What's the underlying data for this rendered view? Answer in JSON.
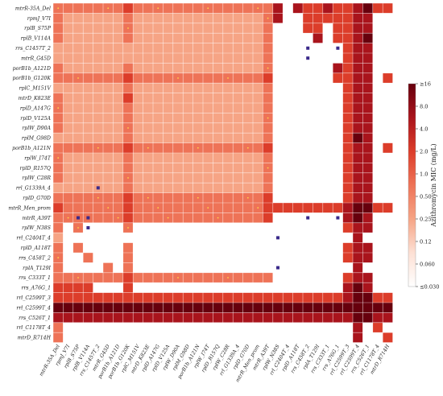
{
  "chart_data": {
    "type": "heatmap",
    "title": "",
    "xlabel": "",
    "ylabel": "",
    "labels": [
      "mtrR-35A_Del",
      "rpmJ_V7I",
      "rplB_S75P",
      "rplB_V114A",
      "rrs_C1457T_2",
      "mtrR_G45D",
      "porB1b_A121D",
      "porB1b_G120K",
      "rplC_M151V",
      "mtrD_K823E",
      "rplD_A147G",
      "rplD_V125A",
      "rplW_D90A",
      "rplM_G98D",
      "porB1b_A121N",
      "rplW_I74T",
      "rplD_R157Q",
      "rplW_C28R",
      "rrl_G1339A_4",
      "rplD_G70D",
      "mtrR_Men_prom",
      "mtrR_A39T",
      "rplW_N38S",
      "rrl_C2404T_4",
      "rplD_A118T",
      "rrs_C458T_2",
      "rplA_T129I",
      "rrs_C333T_1",
      "rrs_A76G_1",
      "rrl_C2599T_3",
      "rrl_C2599T_4",
      "rrs_C526T_1",
      "rrl_C1178T_4",
      "mtrD_R714H"
    ],
    "matrix": [
      [
        3,
        3,
        3,
        3,
        3,
        3,
        3,
        4,
        3,
        3,
        3,
        3,
        3,
        3,
        3,
        3,
        3,
        3,
        3,
        3,
        3,
        3,
        5,
        0,
        5,
        4,
        4,
        5,
        4,
        4,
        5,
        6,
        4,
        4
      ],
      [
        3,
        2,
        2,
        2,
        2,
        2,
        2,
        3,
        2,
        2,
        2,
        2,
        2,
        2,
        2,
        2,
        2,
        2,
        2,
        2,
        2,
        3,
        5,
        0,
        0,
        4,
        4,
        4,
        4,
        4,
        5,
        5,
        0,
        0
      ],
      [
        3,
        2,
        2,
        2,
        2,
        2,
        2,
        3,
        2,
        2,
        2,
        2,
        2,
        2,
        2,
        2,
        2,
        2,
        2,
        2,
        2,
        3,
        0,
        0,
        0,
        4,
        4,
        0,
        4,
        4,
        5,
        5,
        0,
        0
      ],
      [
        3,
        2,
        2,
        2,
        2,
        2,
        2,
        3,
        2,
        2,
        2,
        2,
        2,
        2,
        2,
        2,
        2,
        2,
        2,
        2,
        2,
        3,
        0,
        0,
        0,
        0,
        5,
        0,
        4,
        4,
        5,
        6,
        0,
        0
      ],
      [
        2,
        2,
        2,
        2,
        2,
        2,
        2,
        2,
        2,
        2,
        2,
        2,
        2,
        2,
        2,
        2,
        2,
        2,
        2,
        2,
        2,
        3,
        0,
        0,
        0,
        0,
        0,
        0,
        0,
        4,
        5,
        5,
        0,
        0
      ],
      [
        2,
        2,
        2,
        2,
        2,
        2,
        2,
        2,
        2,
        2,
        2,
        2,
        2,
        2,
        2,
        2,
        2,
        2,
        2,
        2,
        2,
        3,
        0,
        0,
        0,
        0,
        0,
        0,
        0,
        4,
        5,
        5,
        0,
        0
      ],
      [
        3,
        2,
        2,
        2,
        2,
        2,
        2,
        3,
        2,
        2,
        2,
        2,
        2,
        2,
        2,
        2,
        2,
        2,
        2,
        2,
        2,
        3,
        0,
        0,
        0,
        0,
        0,
        0,
        5,
        4,
        5,
        5,
        0,
        0
      ],
      [
        3,
        3,
        3,
        3,
        3,
        3,
        3,
        4,
        3,
        3,
        3,
        3,
        3,
        3,
        3,
        3,
        3,
        3,
        3,
        3,
        3,
        4,
        0,
        0,
        0,
        0,
        0,
        0,
        4,
        4,
        5,
        5,
        0,
        4
      ],
      [
        2,
        2,
        2,
        2,
        2,
        2,
        2,
        3,
        2,
        2,
        2,
        2,
        2,
        2,
        2,
        2,
        2,
        2,
        2,
        2,
        2,
        3,
        0,
        0,
        0,
        0,
        0,
        0,
        0,
        4,
        5,
        5,
        0,
        0
      ],
      [
        3,
        2,
        2,
        2,
        2,
        2,
        2,
        4,
        2,
        2,
        2,
        2,
        2,
        2,
        2,
        2,
        2,
        2,
        2,
        2,
        2,
        3,
        0,
        0,
        0,
        0,
        0,
        0,
        0,
        4,
        5,
        5,
        0,
        0
      ],
      [
        3,
        2,
        2,
        2,
        2,
        2,
        2,
        3,
        2,
        2,
        2,
        2,
        2,
        2,
        2,
        2,
        2,
        2,
        2,
        2,
        2,
        3,
        0,
        0,
        0,
        0,
        0,
        0,
        0,
        4,
        5,
        5,
        0,
        0
      ],
      [
        3,
        2,
        2,
        2,
        2,
        2,
        2,
        3,
        2,
        2,
        2,
        2,
        2,
        2,
        2,
        2,
        2,
        2,
        2,
        2,
        2,
        3,
        0,
        0,
        0,
        0,
        0,
        0,
        0,
        4,
        5,
        5,
        0,
        0
      ],
      [
        3,
        2,
        2,
        2,
        2,
        2,
        2,
        3,
        2,
        2,
        2,
        2,
        2,
        2,
        2,
        2,
        2,
        2,
        2,
        2,
        2,
        3,
        0,
        0,
        0,
        0,
        0,
        0,
        0,
        4,
        5,
        5,
        0,
        0
      ],
      [
        2,
        2,
        2,
        2,
        2,
        2,
        2,
        3,
        2,
        2,
        2,
        2,
        2,
        2,
        2,
        2,
        2,
        2,
        2,
        2,
        2,
        3,
        0,
        0,
        0,
        0,
        0,
        0,
        0,
        4,
        6,
        5,
        0,
        0
      ],
      [
        3,
        3,
        3,
        3,
        3,
        3,
        3,
        4,
        3,
        3,
        3,
        3,
        3,
        3,
        3,
        3,
        3,
        3,
        3,
        3,
        3,
        4,
        0,
        0,
        0,
        0,
        0,
        0,
        0,
        4,
        5,
        5,
        0,
        4
      ],
      [
        3,
        2,
        2,
        2,
        2,
        2,
        2,
        3,
        2,
        2,
        2,
        2,
        2,
        2,
        2,
        2,
        2,
        2,
        2,
        2,
        2,
        3,
        0,
        0,
        0,
        0,
        0,
        0,
        0,
        4,
        5,
        5,
        0,
        0
      ],
      [
        3,
        2,
        2,
        2,
        2,
        2,
        2,
        3,
        2,
        2,
        2,
        2,
        2,
        2,
        2,
        2,
        2,
        2,
        2,
        2,
        2,
        3,
        0,
        0,
        0,
        0,
        0,
        0,
        0,
        4,
        5,
        5,
        0,
        0
      ],
      [
        3,
        2,
        2,
        2,
        2,
        2,
        2,
        3,
        2,
        2,
        2,
        2,
        2,
        2,
        2,
        2,
        2,
        2,
        2,
        2,
        2,
        3,
        0,
        0,
        0,
        0,
        0,
        0,
        0,
        4,
        5,
        5,
        0,
        0
      ],
      [
        2,
        2,
        2,
        2,
        2,
        2,
        2,
        3,
        2,
        2,
        2,
        2,
        2,
        2,
        2,
        2,
        2,
        2,
        2,
        2,
        2,
        3,
        0,
        0,
        0,
        0,
        0,
        0,
        0,
        4,
        5,
        5,
        0,
        0
      ],
      [
        3,
        3,
        3,
        3,
        3,
        3,
        3,
        4,
        3,
        3,
        3,
        3,
        3,
        3,
        3,
        3,
        3,
        3,
        3,
        3,
        3,
        4,
        0,
        0,
        0,
        0,
        0,
        0,
        0,
        4,
        5,
        5,
        0,
        0
      ],
      [
        4,
        3,
        3,
        3,
        3,
        3,
        3,
        4,
        3,
        3,
        3,
        3,
        3,
        3,
        3,
        3,
        3,
        3,
        3,
        3,
        3,
        4,
        4,
        4,
        4,
        4,
        4,
        4,
        4,
        5,
        6,
        6,
        4,
        4
      ],
      [
        3,
        3,
        3,
        3,
        3,
        3,
        3,
        4,
        3,
        3,
        3,
        3,
        3,
        3,
        3,
        3,
        3,
        3,
        3,
        3,
        3,
        4,
        0,
        0,
        0,
        0,
        0,
        0,
        0,
        5,
        6,
        5,
        0,
        0
      ],
      [
        3,
        0,
        3,
        0,
        0,
        0,
        0,
        3,
        0,
        0,
        0,
        0,
        0,
        0,
        0,
        0,
        0,
        0,
        0,
        0,
        0,
        0,
        0,
        0,
        0,
        0,
        0,
        0,
        0,
        4,
        5,
        5,
        0,
        0
      ],
      [
        2,
        0,
        0,
        0,
        0,
        0,
        0,
        0,
        0,
        0,
        0,
        0,
        0,
        0,
        0,
        0,
        0,
        0,
        0,
        0,
        0,
        0,
        0,
        0,
        0,
        0,
        0,
        0,
        0,
        0,
        5,
        0,
        0,
        0
      ],
      [
        3,
        0,
        3,
        0,
        0,
        0,
        0,
        3,
        0,
        0,
        0,
        0,
        0,
        0,
        0,
        0,
        0,
        0,
        0,
        0,
        0,
        0,
        0,
        0,
        0,
        0,
        0,
        0,
        0,
        4,
        5,
        5,
        0,
        0
      ],
      [
        3,
        0,
        0,
        3,
        0,
        0,
        0,
        3,
        0,
        0,
        0,
        0,
        0,
        0,
        0,
        0,
        0,
        0,
        0,
        0,
        0,
        0,
        0,
        0,
        0,
        0,
        0,
        0,
        0,
        4,
        5,
        5,
        0,
        0
      ],
      [
        3,
        0,
        0,
        0,
        0,
        3,
        0,
        3,
        0,
        0,
        0,
        0,
        0,
        0,
        0,
        0,
        0,
        0,
        0,
        0,
        0,
        0,
        0,
        0,
        0,
        0,
        0,
        0,
        0,
        0,
        5,
        0,
        0,
        0
      ],
      [
        3,
        3,
        3,
        3,
        3,
        3,
        3,
        4,
        3,
        3,
        3,
        3,
        3,
        3,
        3,
        3,
        3,
        3,
        3,
        3,
        3,
        3,
        0,
        0,
        0,
        0,
        0,
        0,
        0,
        4,
        5,
        5,
        0,
        0
      ],
      [
        4,
        4,
        4,
        4,
        0,
        0,
        0,
        4,
        0,
        0,
        0,
        0,
        0,
        0,
        0,
        0,
        0,
        0,
        0,
        0,
        0,
        0,
        0,
        0,
        0,
        0,
        0,
        0,
        0,
        5,
        6,
        5,
        0,
        0
      ],
      [
        4,
        4,
        4,
        4,
        4,
        4,
        4,
        4,
        4,
        4,
        4,
        4,
        4,
        4,
        4,
        4,
        4,
        4,
        4,
        4,
        4,
        4,
        4,
        4,
        4,
        4,
        4,
        4,
        4,
        5,
        6,
        6,
        4,
        4
      ],
      [
        6,
        6,
        6,
        6,
        6,
        6,
        6,
        6,
        6,
        6,
        6,
        6,
        6,
        6,
        6,
        6,
        6,
        6,
        6,
        6,
        6,
        6,
        6,
        6,
        6,
        6,
        6,
        6,
        6,
        6,
        6,
        6,
        6,
        6
      ],
      [
        5,
        5,
        5,
        5,
        5,
        5,
        5,
        5,
        5,
        5,
        5,
        5,
        5,
        5,
        5,
        5,
        5,
        5,
        5,
        5,
        5,
        5,
        5,
        5,
        5,
        5,
        5,
        5,
        5,
        5,
        6,
        6,
        5,
        5
      ],
      [
        3,
        0,
        0,
        0,
        0,
        0,
        0,
        0,
        0,
        0,
        0,
        0,
        0,
        0,
        0,
        0,
        0,
        0,
        0,
        0,
        0,
        0,
        0,
        0,
        0,
        0,
        0,
        0,
        0,
        0,
        5,
        0,
        4,
        0
      ],
      [
        3,
        0,
        0,
        0,
        0,
        0,
        0,
        0,
        0,
        0,
        0,
        0,
        0,
        0,
        0,
        0,
        0,
        0,
        0,
        0,
        0,
        0,
        0,
        0,
        0,
        0,
        0,
        0,
        0,
        0,
        5,
        0,
        0,
        4
      ]
    ],
    "colorscale": [
      "#ffffff",
      "#fde0d4",
      "#f6a485",
      "#ee7357",
      "#dc3d2a",
      "#a9141c",
      "#67000d"
    ],
    "colorbar": {
      "title": "Azithromycin MIC (mg/L)",
      "ticks": [
        "≥16",
        "8.0",
        "4.0",
        "2.0",
        "1.0",
        "0.50",
        "0.25",
        "0.12",
        "0.060",
        "≤0.030"
      ]
    },
    "markers": {
      "dot_color": "#ffd24a",
      "square_color": "#3a2a8a"
    },
    "grid": true,
    "legend": "colorbar-right"
  }
}
